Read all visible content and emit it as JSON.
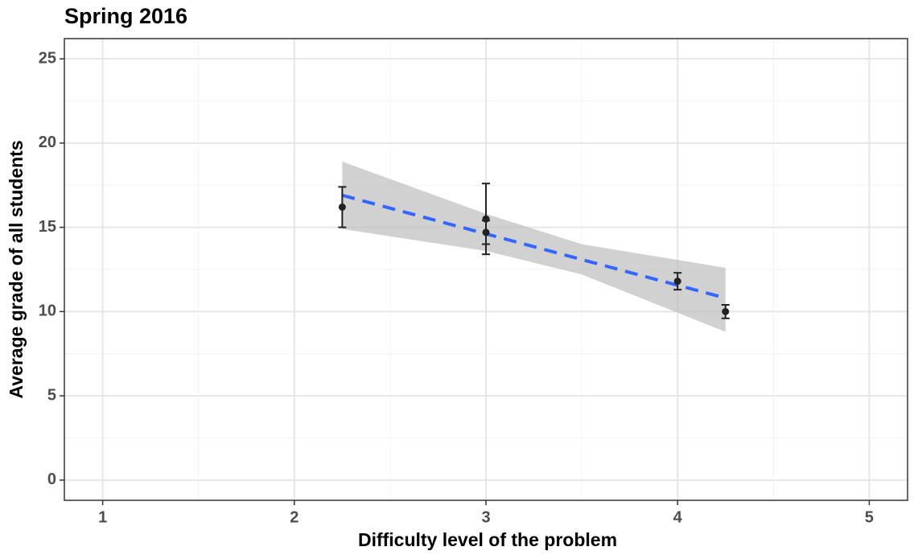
{
  "chart_data": {
    "type": "scatter",
    "title": "Spring 2016",
    "x_label": "Difficulty level of the problem",
    "y_label": "Average grade of all students",
    "xlim": [
      0.8,
      5.2
    ],
    "ylim": [
      -1.2,
      26.2
    ],
    "xticks": [
      1,
      2,
      3,
      4,
      5
    ],
    "yticks": [
      0,
      5,
      10,
      15,
      20,
      25
    ],
    "x_minor_ticks": [
      1.5,
      2.5,
      3.5,
      4.5
    ],
    "y_minor_ticks": [
      2.5,
      7.5,
      12.5,
      17.5,
      22.5
    ],
    "grid": true,
    "points": {
      "color": "#222222",
      "x": [
        2.25,
        3,
        3,
        4,
        4.25
      ],
      "y": [
        16.2,
        15.5,
        14.7,
        11.8,
        10.0
      ],
      "error": [
        1.2,
        2.1,
        0.7,
        0.5,
        0.4
      ]
    },
    "fit": {
      "color": "#3366ff",
      "x": [
        2.25,
        4.25
      ],
      "y": [
        16.9,
        10.8
      ]
    },
    "ribbon": {
      "color": "#bebebe",
      "x": [
        2.25,
        3,
        3.5,
        4.25
      ],
      "lower": [
        14.9,
        13.6,
        12.2,
        8.8
      ],
      "upper": [
        18.9,
        15.8,
        14.0,
        12.6
      ]
    }
  }
}
